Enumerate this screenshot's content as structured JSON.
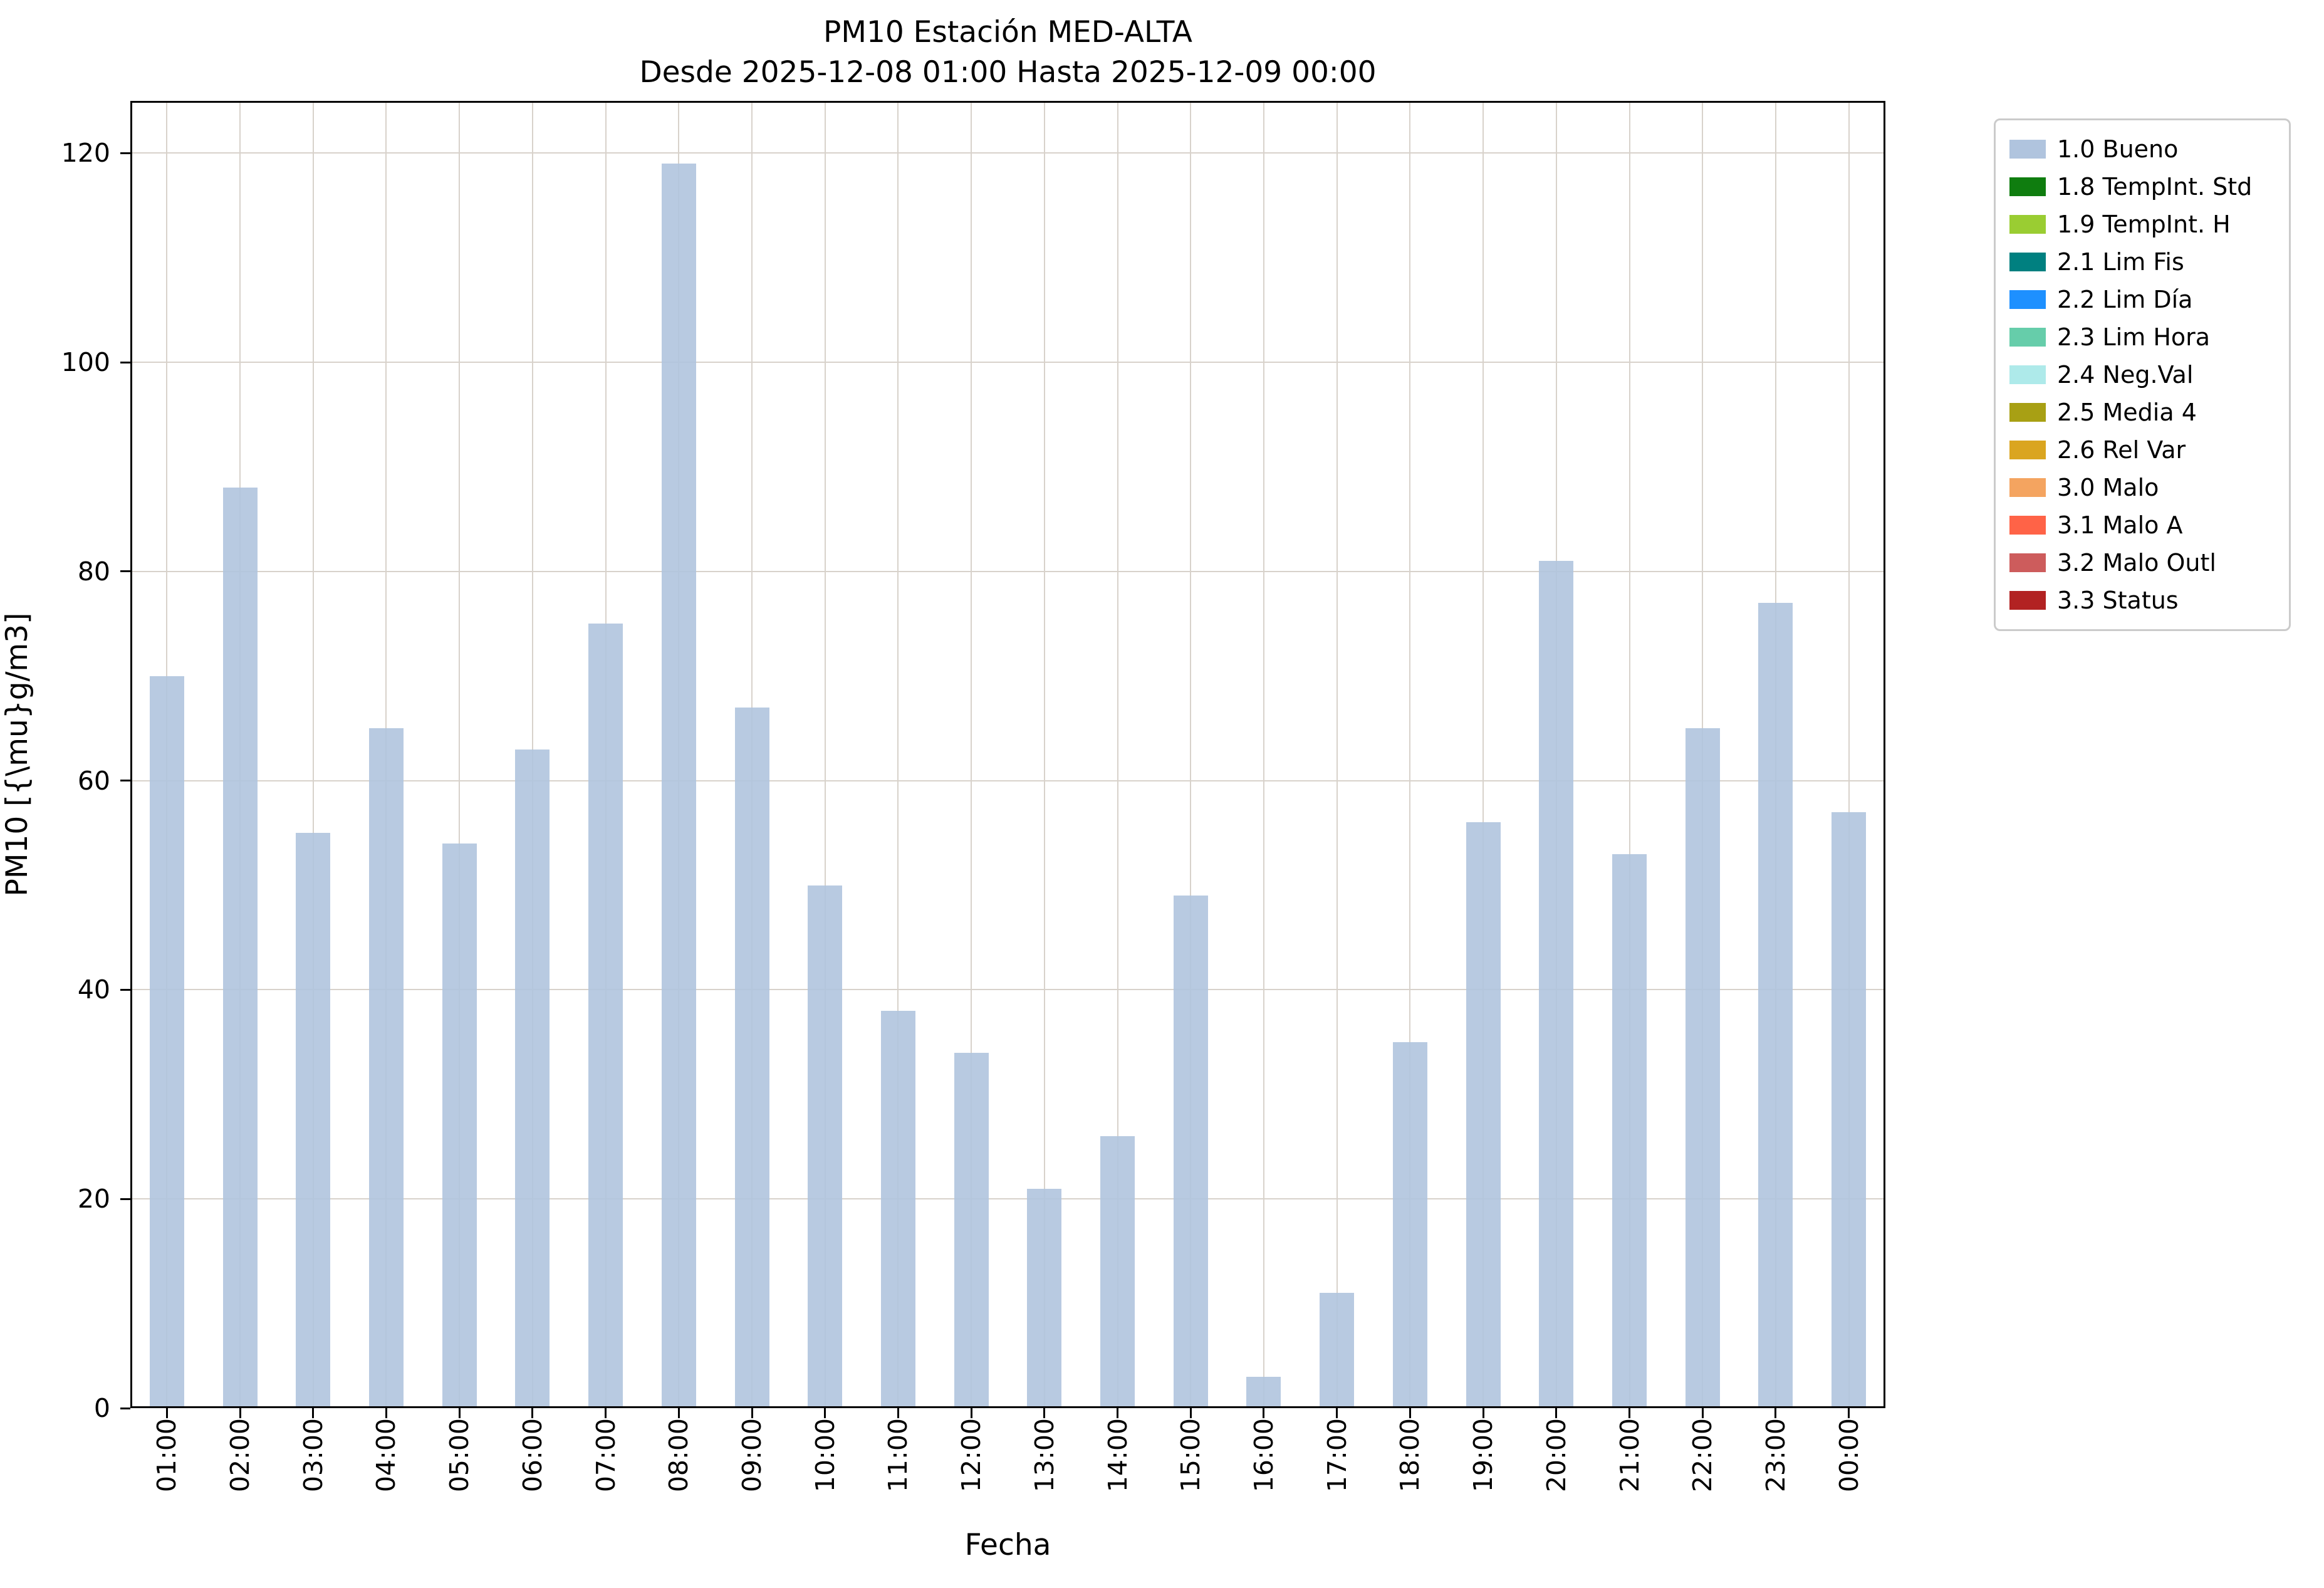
{
  "chart_data": {
    "type": "bar",
    "title": "PM10 Estación MED-ALTA",
    "subtitle": "Desde 2025-12-08 01:00 Hasta 2025-12-09 00:00",
    "xlabel": "Fecha",
    "ylabel": "PM10 [{\\mu}g/m3]",
    "categories": [
      "01:00",
      "02:00",
      "03:00",
      "04:00",
      "05:00",
      "06:00",
      "07:00",
      "08:00",
      "09:00",
      "10:00",
      "11:00",
      "12:00",
      "13:00",
      "14:00",
      "15:00",
      "16:00",
      "17:00",
      "18:00",
      "19:00",
      "20:00",
      "21:00",
      "22:00",
      "23:00",
      "00:00"
    ],
    "values": [
      70,
      88,
      55,
      65,
      54,
      63,
      75,
      119,
      67,
      50,
      38,
      34,
      21,
      26,
      49,
      3,
      11,
      35,
      56,
      81,
      53,
      65,
      77,
      57
    ],
    "ylim": [
      0,
      125
    ],
    "yticks": [
      0,
      20,
      40,
      60,
      80,
      100,
      120
    ],
    "grid": true,
    "bar_color": "#b0c4de",
    "grid_color": "#d8d2cb",
    "legend_position": "outside-right",
    "legend": [
      {
        "label": "1.0 Bueno",
        "color": "#b0c4de"
      },
      {
        "label": "1.8 TempInt. Std",
        "color": "#0f7d0f"
      },
      {
        "label": "1.9 TempInt. H",
        "color": "#9acd32"
      },
      {
        "label": "2.1 Lim Fis",
        "color": "#008080"
      },
      {
        "label": "2.2 Lim Día",
        "color": "#1e90ff"
      },
      {
        "label": "2.3 Lim Hora",
        "color": "#66cdaa"
      },
      {
        "label": "2.4 Neg.Val",
        "color": "#aeeaea"
      },
      {
        "label": "2.5 Media 4",
        "color": "#a8a014"
      },
      {
        "label": "2.6 Rel Var",
        "color": "#daa520"
      },
      {
        "label": "3.0 Malo",
        "color": "#f4a460"
      },
      {
        "label": "3.1 Malo A",
        "color": "#ff6347"
      },
      {
        "label": "3.2 Malo Outl",
        "color": "#cd5c5c"
      },
      {
        "label": "3.3 Status",
        "color": "#b22222"
      }
    ]
  }
}
